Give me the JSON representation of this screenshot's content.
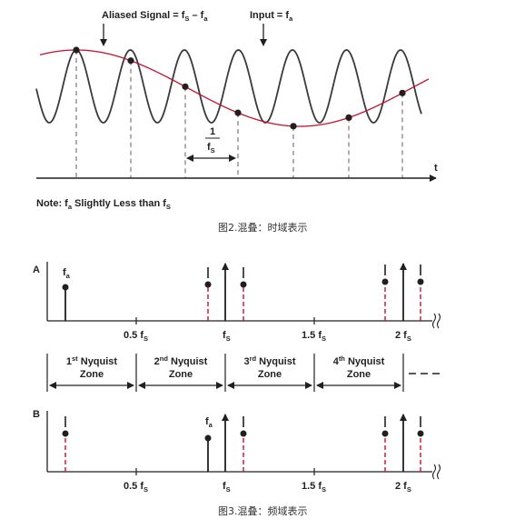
{
  "colors": {
    "ink": "#231f20",
    "alias": "#c8102e",
    "input_wave": "#3a3a3a",
    "grid_dash": "#6d6d6d"
  },
  "fig2": {
    "aliased_label": "Aliased Signal = f",
    "aliased_sub1": "S",
    "aliased_mid": " – f",
    "aliased_sub2": "a",
    "input_label": "Input = f",
    "input_sub": "a",
    "t_label": "t",
    "period_num": "1",
    "period_den": "f",
    "period_den_sub": "S",
    "note_text": "Note: f",
    "note_sub1": "a",
    "note_mid": " Slightly Less than f",
    "note_sub2": "S",
    "caption": "图2.混叠：时域表示"
  },
  "fig3": {
    "panel_a_label": "A",
    "panel_b_label": "B",
    "fa_label": "f",
    "fa_sub": "a",
    "ticks": [
      {
        "pre": "0.5 f",
        "sub": "S"
      },
      {
        "pre": "f",
        "sub": "S"
      },
      {
        "pre": "1.5 f",
        "sub": "S"
      },
      {
        "pre": "2 f",
        "sub": "S"
      }
    ],
    "zones": [
      {
        "ord": "1",
        "sup": "st",
        "line1": " Nyquist",
        "line2": "Zone"
      },
      {
        "ord": "2",
        "sup": "nd",
        "line1": " Nyquist",
        "line2": "Zone"
      },
      {
        "ord": "3",
        "sup": "rd",
        "line1": " Nyquist",
        "line2": "Zone"
      },
      {
        "ord": "4",
        "sup": "th",
        "line1": " Nyquist",
        "line2": "Zone"
      }
    ],
    "caption": "图3.混叠：频域表示"
  }
}
